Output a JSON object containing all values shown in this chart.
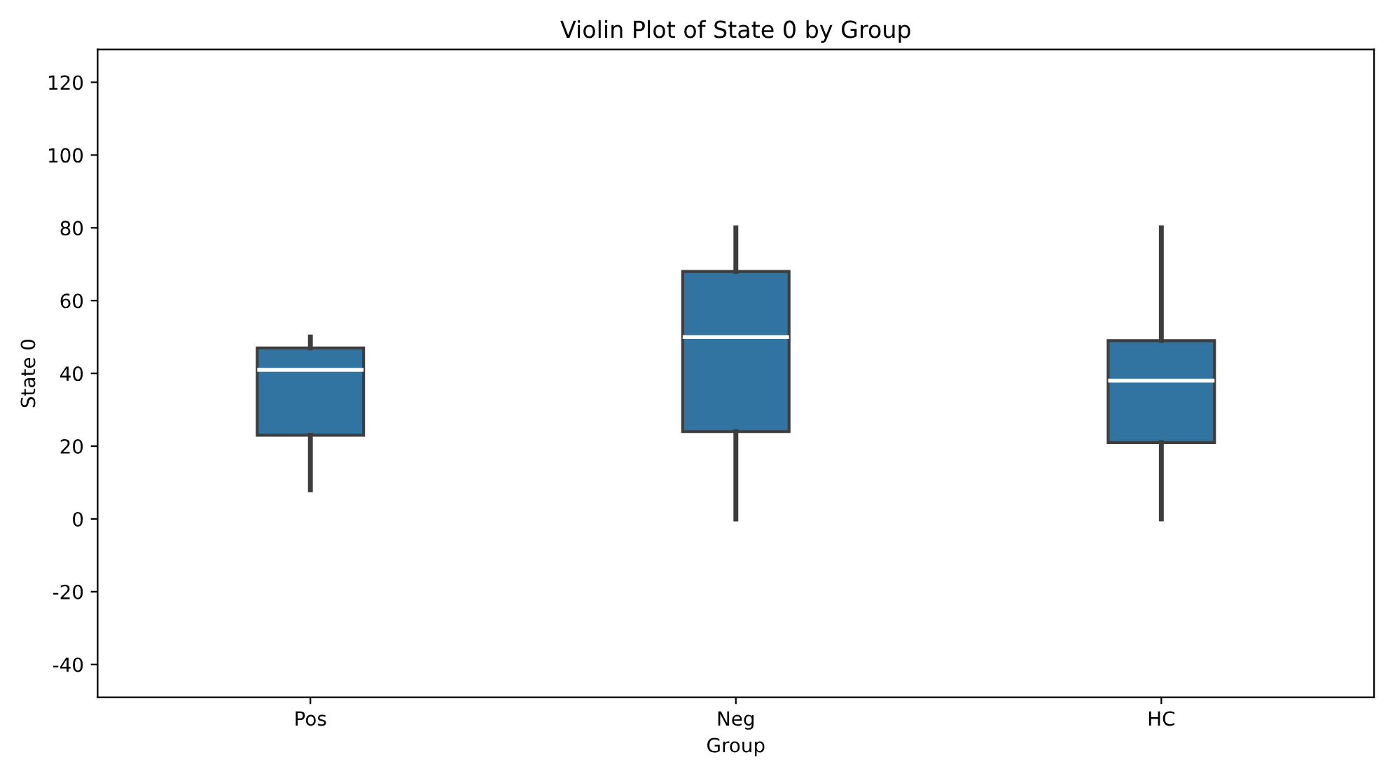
{
  "chart_data": {
    "type": "box",
    "title": "Violin Plot of State 0 by Group",
    "xlabel": "Group",
    "ylabel": "State 0",
    "categories": [
      "Pos",
      "Neg",
      "HC"
    ],
    "color": "#3274a1",
    "boxes": [
      {
        "low": 8,
        "q1": 23,
        "median": 41,
        "q3": 47,
        "high": 50
      },
      {
        "low": 0,
        "q1": 24,
        "median": 50,
        "q3": 68,
        "high": 80
      },
      {
        "low": 0,
        "q1": 21,
        "median": 38,
        "q3": 49,
        "high": 80
      }
    ],
    "ylim": [
      -49,
      129
    ],
    "yticks": [
      -40,
      -20,
      0,
      20,
      40,
      60,
      80,
      100,
      120
    ],
    "grid": false
  }
}
